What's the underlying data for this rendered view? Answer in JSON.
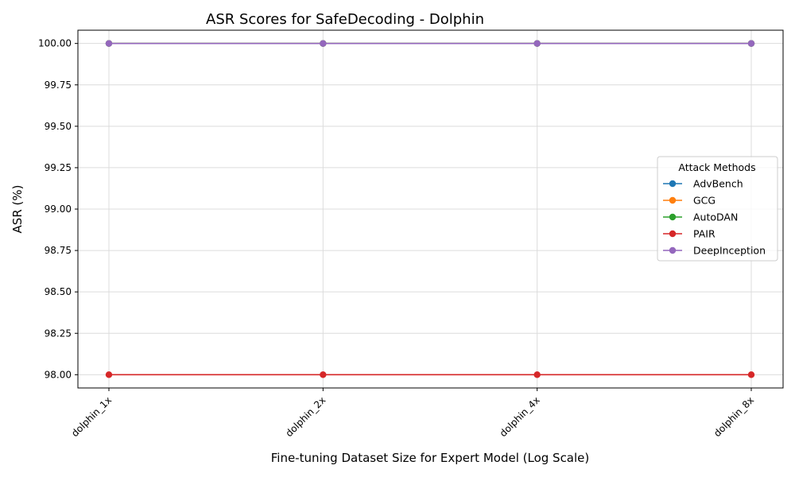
{
  "chart_data": {
    "type": "line",
    "title": "ASR Scores for SafeDecoding - Dolphin",
    "xlabel": "Fine-tuning Dataset Size for Expert Model (Log Scale)",
    "ylabel": "ASR (%)",
    "categories": [
      "dolphin_1x",
      "dolphin_2x",
      "dolphin_4x",
      "dolphin_8x"
    ],
    "ylim": [
      97.92,
      100.08
    ],
    "yticks": [
      "98.00",
      "98.25",
      "98.50",
      "98.75",
      "99.00",
      "99.25",
      "99.50",
      "99.75",
      "100.00"
    ],
    "grid": true,
    "legend": {
      "title": "Attack Methods",
      "placement": "center-right"
    },
    "series": [
      {
        "name": "AdvBench",
        "color": "#1f77b4",
        "values": [
          100,
          100,
          100,
          100
        ]
      },
      {
        "name": "GCG",
        "color": "#ff7f0e",
        "values": [
          100,
          100,
          100,
          100
        ]
      },
      {
        "name": "AutoDAN",
        "color": "#2ca02c",
        "values": [
          100,
          100,
          100,
          100
        ]
      },
      {
        "name": "PAIR",
        "color": "#d62728",
        "values": [
          98,
          98,
          98,
          98
        ]
      },
      {
        "name": "DeepInception",
        "color": "#9467bd",
        "values": [
          100,
          100,
          100,
          100
        ]
      }
    ]
  }
}
